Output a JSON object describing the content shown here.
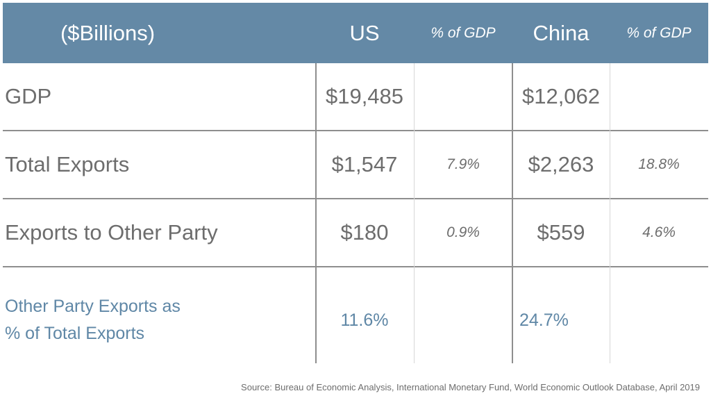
{
  "header": {
    "units": "($Billions)",
    "us": "US",
    "us_pct": "% of GDP",
    "china": "China",
    "china_pct": "% of GDP"
  },
  "rows": [
    {
      "label": "GDP",
      "us": "$19,485",
      "us_pct": "",
      "china": "$12,062",
      "china_pct": ""
    },
    {
      "label": "Total Exports",
      "us": "$1,547",
      "us_pct": "7.9%",
      "china": "$2,263",
      "china_pct": "18.8%"
    },
    {
      "label": "Exports to Other Party",
      "us": "$180",
      "us_pct": "0.9%",
      "china": "$559",
      "china_pct": "4.6%"
    },
    {
      "label_line1": "Other Party Exports as",
      "label_line2": "% of Total Exports",
      "us": "11.6%",
      "china": "24.7%"
    }
  ],
  "source": "Source: Bureau of Economic Analysis, International Monetary Fund, World Economic Outlook Database, April 2019",
  "colors": {
    "header_bg": "#6489A6",
    "accent_text": "#5f87a6",
    "body_text": "#6d6d6d"
  }
}
